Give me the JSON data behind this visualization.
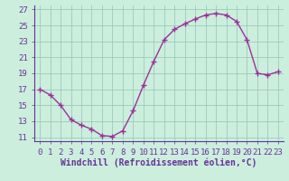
{
  "x": [
    0,
    1,
    2,
    3,
    4,
    5,
    6,
    7,
    8,
    9,
    10,
    11,
    12,
    13,
    14,
    15,
    16,
    17,
    18,
    19,
    20,
    21,
    22,
    23
  ],
  "y": [
    17.0,
    16.3,
    15.0,
    13.2,
    12.5,
    12.0,
    11.2,
    11.1,
    11.8,
    14.3,
    17.5,
    20.5,
    23.2,
    24.5,
    25.2,
    25.8,
    26.3,
    26.5,
    26.3,
    25.5,
    23.2,
    19.0,
    18.8,
    19.2
  ],
  "line_color": "#993399",
  "marker_color": "#993399",
  "bg_color": "#cceedd",
  "grid_color": "#99ccbb",
  "axis_color": "#663399",
  "xlabel": "Windchill (Refroidissement éolien,°C)",
  "ylim": [
    10.5,
    27.5
  ],
  "xlim": [
    -0.5,
    23.5
  ],
  "yticks": [
    11,
    13,
    15,
    17,
    19,
    21,
    23,
    25,
    27
  ],
  "xticks": [
    0,
    1,
    2,
    3,
    4,
    5,
    6,
    7,
    8,
    9,
    10,
    11,
    12,
    13,
    14,
    15,
    16,
    17,
    18,
    19,
    20,
    21,
    22,
    23
  ],
  "xlabel_fontsize": 7,
  "tick_fontsize": 6.5,
  "marker_size": 4,
  "line_width": 1.0
}
